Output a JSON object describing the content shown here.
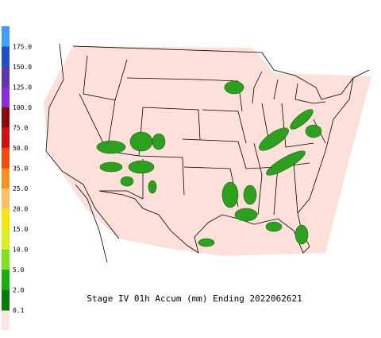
{
  "title": "Stage IV 01h Accum (mm) Ending 2022062621",
  "legend": {
    "items": [
      {
        "label": "175.0",
        "color": "#3fa0f5"
      },
      {
        "label": "150.0",
        "color": "#2050c8"
      },
      {
        "label": "125.0",
        "color": "#5a3aa8"
      },
      {
        "label": "100.0",
        "color": "#8a2ad8"
      },
      {
        "label": "75.0",
        "color": "#8b0a0a"
      },
      {
        "label": "50.0",
        "color": "#d01010"
      },
      {
        "label": "35.0",
        "color": "#f04a10"
      },
      {
        "label": "25.0",
        "color": "#f7901c"
      },
      {
        "label": "20.0",
        "color": "#f8c060"
      },
      {
        "label": "15.0",
        "color": "#f6e40a"
      },
      {
        "label": "10.0",
        "color": "#d8f020"
      },
      {
        "label": "5.0",
        "color": "#80e020"
      },
      {
        "label": "2.0",
        "color": "#18b010"
      },
      {
        "label": "0.1",
        "color": "#0a7a0a"
      }
    ]
  }
}
